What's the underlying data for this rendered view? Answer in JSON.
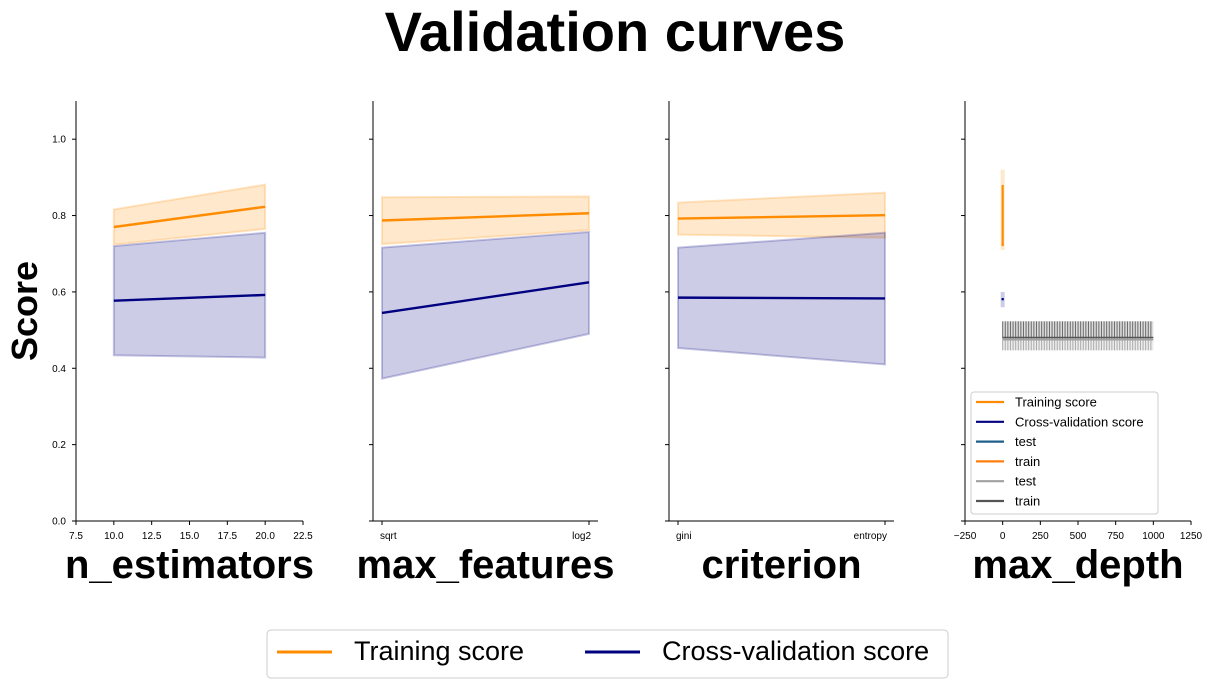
{
  "figure": {
    "title": "Validation curves",
    "ylabel": "Score",
    "legend": [
      {
        "label": "Training score",
        "color": "#ff8c00"
      },
      {
        "label": "Cross-validation score",
        "color": "#000080"
      }
    ]
  },
  "chart_data": [
    {
      "type": "line",
      "xlabel": "n_estimators",
      "ylabel": "Score",
      "x": [
        10,
        20
      ],
      "xlim": [
        7.5,
        22.5
      ],
      "xticks": [
        "7.5",
        "10.0",
        "12.5",
        "15.0",
        "17.5",
        "20.0",
        "22.5"
      ],
      "ylim": [
        0.0,
        1.1
      ],
      "yticks": [
        "0.0",
        "0.2",
        "0.4",
        "0.6",
        "0.8",
        "1.0"
      ],
      "series": [
        {
          "name": "Training score",
          "color": "#ff8c00",
          "values": [
            0.77,
            0.823
          ],
          "lower": [
            0.724,
            0.765
          ],
          "upper": [
            0.816,
            0.881
          ]
        },
        {
          "name": "Cross-validation score",
          "color": "#000080",
          "values": [
            0.577,
            0.592
          ],
          "lower": [
            0.434,
            0.428
          ],
          "upper": [
            0.72,
            0.755
          ]
        }
      ]
    },
    {
      "type": "line",
      "xlabel": "max_features",
      "categories": [
        "sqrt",
        "log2"
      ],
      "ylim": [
        0.0,
        1.1
      ],
      "series": [
        {
          "name": "Training score",
          "color": "#ff8c00",
          "values": [
            0.787,
            0.806
          ],
          "lower": [
            0.725,
            0.762
          ],
          "upper": [
            0.848,
            0.85
          ]
        },
        {
          "name": "Cross-validation score",
          "color": "#000080",
          "values": [
            0.545,
            0.625
          ],
          "lower": [
            0.373,
            0.49
          ],
          "upper": [
            0.716,
            0.757
          ]
        }
      ]
    },
    {
      "type": "line",
      "xlabel": "criterion",
      "categories": [
        "gini",
        "entropy"
      ],
      "ylim": [
        0.0,
        1.1
      ],
      "series": [
        {
          "name": "Training score",
          "color": "#ff8c00",
          "values": [
            0.792,
            0.801
          ],
          "lower": [
            0.75,
            0.742
          ],
          "upper": [
            0.834,
            0.86
          ]
        },
        {
          "name": "Cross-validation score",
          "color": "#000080",
          "values": [
            0.585,
            0.583
          ],
          "lower": [
            0.453,
            0.41
          ],
          "upper": [
            0.716,
            0.755
          ]
        }
      ]
    },
    {
      "type": "line",
      "xlabel": "max_depth",
      "x": [
        1,
        2
      ],
      "xlim": [
        -250,
        1250
      ],
      "xticks": [
        "−250",
        "0",
        "250",
        "500",
        "750",
        "1000",
        "1250"
      ],
      "ylim": [
        0.0,
        1.1
      ],
      "series": [
        {
          "name": "Training score",
          "color": "#ff8c00",
          "values": [
            0.88,
            0.72
          ],
          "lower": [
            0.84,
            0.71
          ],
          "upper": [
            0.92,
            0.76
          ]
        },
        {
          "name": "Cross-validation score",
          "color": "#000080",
          "values": [
            0.584,
            0.578
          ],
          "lower": [
            0.56,
            0.56
          ],
          "upper": [
            0.6,
            0.6
          ]
        }
      ],
      "overlay": {
        "x_range": [
          0,
          1000
        ],
        "bands": [
          {
            "name": "test",
            "color": "#a0a0a0",
            "lower": 0.447,
            "upper": 0.482
          },
          {
            "name": "train",
            "color": "#555555",
            "lower": 0.48,
            "upper": 0.523
          }
        ]
      },
      "legend": {
        "position": "lower-right",
        "entries": [
          {
            "label": "Training score",
            "color": "#ff8c00"
          },
          {
            "label": "Cross-validation score",
            "color": "#000080"
          },
          {
            "label": "test",
            "color": "#1f5f8b"
          },
          {
            "label": "train",
            "color": "#ff7f0e"
          },
          {
            "label": "test",
            "color": "#a0a0a0"
          },
          {
            "label": "train",
            "color": "#555555"
          }
        ]
      }
    }
  ]
}
